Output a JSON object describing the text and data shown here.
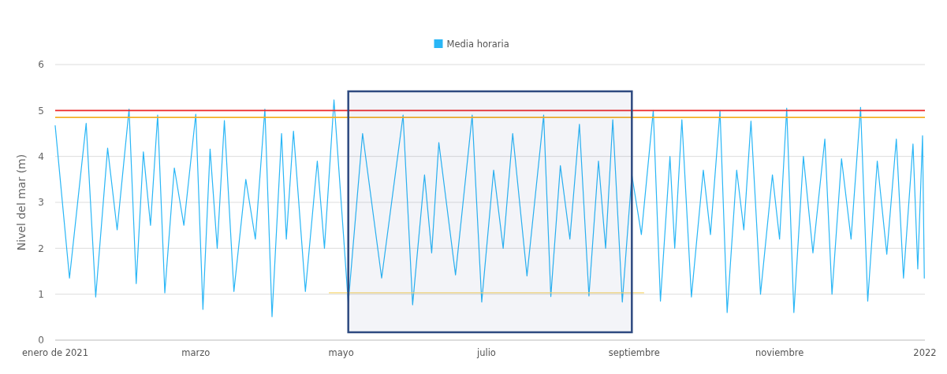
{
  "chart_data": {
    "type": "line",
    "ylabel": "Nivel del mar (m)",
    "xlim": [
      "2021-01-01",
      "2022-01-01"
    ],
    "xticks": [
      {
        "value": "2021-01-01",
        "label": "enero de 2021"
      },
      {
        "value": "2021-03-01",
        "label": "marzo"
      },
      {
        "value": "2021-05-01",
        "label": "mayo"
      },
      {
        "value": "2021-07-01",
        "label": "julio"
      },
      {
        "value": "2021-09-01",
        "label": "septiembre"
      },
      {
        "value": "2021-11-01",
        "label": "noviembre"
      },
      {
        "value": "2022-01-01",
        "label": "2022"
      }
    ],
    "ylim": [
      0,
      6
    ],
    "yticks": [
      0,
      1,
      2,
      3,
      4,
      5,
      6
    ],
    "grid": "y",
    "legend": "top",
    "marker": "none",
    "line_style": "solid",
    "series": [
      {
        "name": "Media horaria",
        "color": "#29b6f6",
        "x": [
          "2021-01-01T00:00",
          "2021-01-07T00:00",
          "2021-01-14T00:00",
          "2021-01-18T00:00",
          "2021-01-23T00:00",
          "2021-01-27T00:00",
          "2021-02-01T00:00",
          "2021-02-04T00:00",
          "2021-02-07T00:00",
          "2021-02-10T00:00",
          "2021-02-13T00:00",
          "2021-02-16T00:00",
          "2021-02-20T00:00",
          "2021-02-24T00:00",
          "2021-03-01T00:00",
          "2021-03-04T00:00",
          "2021-03-07T00:00",
          "2021-03-10T00:00",
          "2021-03-13T00:00",
          "2021-03-17T00:00",
          "2021-03-22T00:00",
          "2021-03-26T00:00",
          "2021-03-30T00:00",
          "2021-04-02T00:00",
          "2021-04-06T00:00",
          "2021-04-08T00:00",
          "2021-04-11T00:00",
          "2021-04-16T00:00",
          "2021-04-21T00:00",
          "2021-04-24T00:00",
          "2021-04-28T00:00",
          "2021-05-04T00:00",
          "2021-05-10T00:00",
          "2021-05-18T00:00",
          "2021-05-27T00:00",
          "2021-05-31T00:00",
          "2021-06-05T00:00",
          "2021-06-08T00:00",
          "2021-06-11T00:00",
          "2021-06-18T00:00",
          "2021-06-25T00:00",
          "2021-06-29T00:00",
          "2021-07-04T00:00",
          "2021-07-08T00:00",
          "2021-07-12T00:00",
          "2021-07-18T00:00",
          "2021-07-25T00:00",
          "2021-07-28T00:00",
          "2021-08-01T00:00",
          "2021-08-05T00:00",
          "2021-08-09T00:00",
          "2021-08-13T00:00",
          "2021-08-17T00:00",
          "2021-08-20T00:00",
          "2021-08-23T00:00",
          "2021-08-27T00:00",
          "2021-08-31T00:00",
          "2021-09-04T00:00",
          "2021-09-09T00:00",
          "2021-09-12T00:00",
          "2021-09-16T00:00",
          "2021-09-18T00:00",
          "2021-09-21T00:00",
          "2021-09-25T00:00",
          "2021-09-30T00:00",
          "2021-10-03T00:00",
          "2021-10-07T00:00",
          "2021-10-10T00:00",
          "2021-10-14T00:00",
          "2021-10-17T00:00",
          "2021-10-20T00:00",
          "2021-10-24T00:00",
          "2021-10-29T00:00",
          "2021-11-01T00:00",
          "2021-11-04T00:00",
          "2021-11-07T00:00",
          "2021-11-11T00:00",
          "2021-11-15T00:00",
          "2021-11-20T00:00",
          "2021-11-23T00:00",
          "2021-11-27T00:00",
          "2021-12-01T00:00",
          "2021-12-05T00:00",
          "2021-12-08T00:00",
          "2021-12-12T00:00",
          "2021-12-16T00:00",
          "2021-12-20T00:00",
          "2021-12-23T00:00",
          "2021-12-27T00:00",
          "2021-12-29T00:00",
          "2021-12-31T00:00",
          "2021-12-31T18:00"
        ],
        "values": [
          4.67,
          1.35,
          4.72,
          0.94,
          4.18,
          2.4,
          5.03,
          1.23,
          4.1,
          2.5,
          4.9,
          1.03,
          3.75,
          2.5,
          4.92,
          0.67,
          4.16,
          2.0,
          4.78,
          1.06,
          3.5,
          2.2,
          5.03,
          0.51,
          4.5,
          2.2,
          4.55,
          1.06,
          3.9,
          2.0,
          5.23,
          0.8,
          4.5,
          1.35,
          4.9,
          0.77,
          3.6,
          1.9,
          4.3,
          1.42,
          4.9,
          0.83,
          3.7,
          2.0,
          4.5,
          1.4,
          4.9,
          0.95,
          3.8,
          2.2,
          4.7,
          0.96,
          3.9,
          2.0,
          4.8,
          0.83,
          3.6,
          2.3,
          5.0,
          0.85,
          4.0,
          2.0,
          4.8,
          0.94,
          3.7,
          2.3,
          5.0,
          0.6,
          3.7,
          2.4,
          4.77,
          1.0,
          3.6,
          2.2,
          5.05,
          0.6,
          4.0,
          1.9,
          4.38,
          1.0,
          3.95,
          2.2,
          5.07,
          0.85,
          3.9,
          1.87,
          4.38,
          1.35,
          4.27,
          1.55,
          4.45,
          1.35
        ]
      },
      {
        "color": "#f7d774",
        "x": [
          "2021-04-26",
          "2021-09-05"
        ],
        "values": [
          1.03,
          1.03
        ]
      }
    ],
    "ref_lines": [
      {
        "axis": "y",
        "value": 5,
        "color": "#ee2a2a"
      },
      {
        "axis": "y",
        "value": 4.85,
        "color": "#f5b027"
      }
    ],
    "bands": [
      {
        "axis": "x",
        "from": "2021-05-04",
        "to": "2021-08-31",
        "color": "#2e4a80"
      }
    ]
  }
}
